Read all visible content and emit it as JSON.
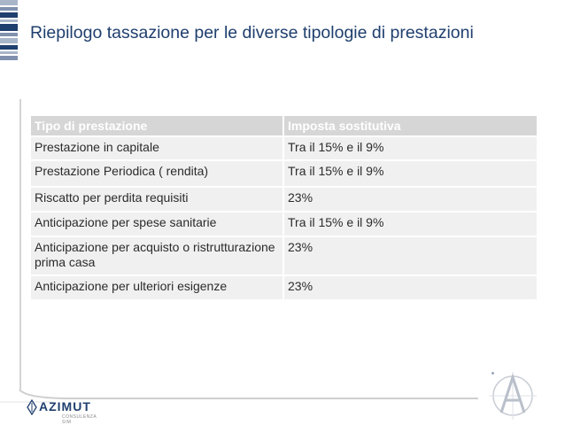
{
  "page": {
    "title": "Riepilogo tassazione per le diverse tipologie di prestazioni"
  },
  "table": {
    "headers": [
      "Tipo di prestazione",
      "Imposta sostitutiva"
    ],
    "rows": [
      {
        "tipo": "Prestazione in capitale",
        "imposta": "Tra il 15% e il 9%"
      },
      {
        "tipo": "Prestazione Periodica ( rendita)",
        "imposta": "Tra il 15% e il 9%"
      },
      {
        "tipo": "Riscatto per perdita requisiti",
        "imposta": "23%"
      },
      {
        "tipo": "Anticipazione per spese sanitarie",
        "imposta": "Tra il 15% e il 9%"
      },
      {
        "tipo": "Anticipazione per acquisto o ristrutturazione prima casa",
        "imposta": "23%"
      },
      {
        "tipo": "Anticipazione per ulteriori esigenze",
        "imposta": "23%"
      }
    ]
  },
  "footer": {
    "logo_text": "AZIMUT",
    "logo_subtext": "CONSULENZA SIM"
  },
  "colors": {
    "title": "#1f3f6e",
    "header_bg": "#d6d6d6",
    "row_bg": "#f0f0f0",
    "stripe_dark": "#1f3f6e",
    "stripe_light": "#a9b6c9"
  }
}
